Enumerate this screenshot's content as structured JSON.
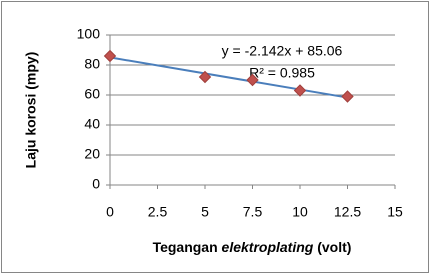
{
  "chart_data": {
    "type": "scatter",
    "x_label_parts": [
      "Tegangan ",
      "elektroplating",
      " (volt)"
    ],
    "y_label": "Laju korosi (mpy)",
    "x": [
      0,
      5,
      7.5,
      10,
      12.5
    ],
    "values": [
      86,
      72,
      70,
      63,
      59
    ],
    "color": "#c0504d",
    "trendline": {
      "slope": -2.142,
      "intercept": 85.06,
      "color": "#4a7ebb"
    },
    "annotations": [
      "y = -2.142x + 85.06",
      "R² = 0.985"
    ],
    "xlim": [
      0,
      15
    ],
    "xticks": [
      0,
      2.5,
      5,
      7.5,
      10,
      12.5,
      15
    ],
    "ylim": [
      0,
      100
    ],
    "yticks": [
      0,
      20,
      40,
      60,
      80,
      100
    ],
    "grid": true
  }
}
